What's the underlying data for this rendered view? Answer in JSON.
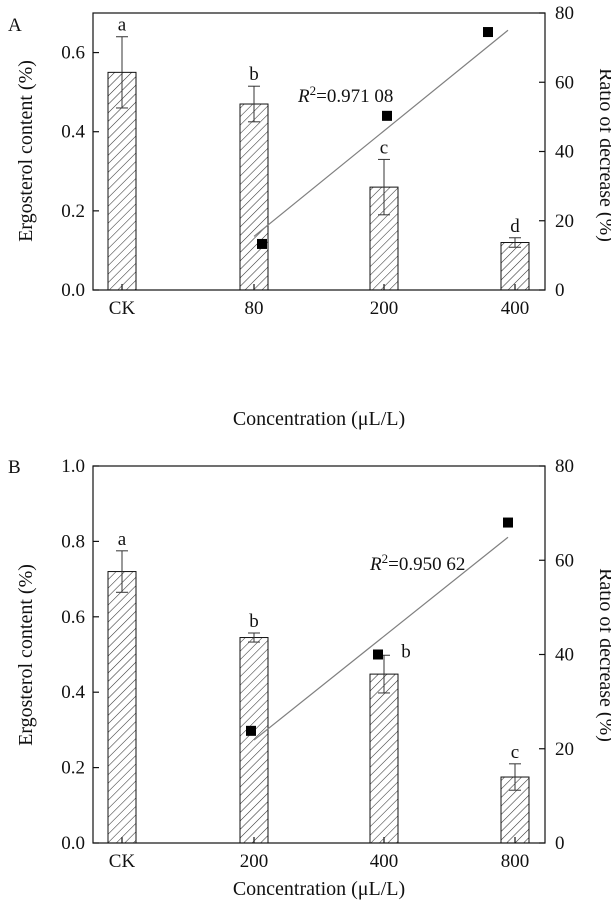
{
  "chart_data": [
    {
      "panel": "A",
      "type": "bar",
      "categories": [
        "CK",
        "80",
        "200",
        "400"
      ],
      "xlabel": "Concentration (μL/L)",
      "ylabel": "Ergosterol content (%)",
      "ylabel_right": "Ratio of decrease (%)",
      "ylim": [
        0,
        0.7
      ],
      "yticks": [
        "0.0",
        "0.2",
        "0.4",
        "0.6"
      ],
      "ylim_right": [
        0,
        80
      ],
      "yticks_right": [
        "0",
        "20",
        "40",
        "60",
        "80"
      ],
      "series": [
        {
          "values": [
            0.55,
            0.47,
            0.26,
            0.12
          ],
          "errors": [
            0.09,
            0.045,
            0.07,
            0.012
          ],
          "letters": [
            "a",
            "b",
            "c",
            "d"
          ]
        },
        {
          "type": "scatter",
          "x": [
            "80",
            "200",
            "400"
          ],
          "values": [
            13.3,
            50.3,
            74.5
          ],
          "trendline": true
        }
      ],
      "annotation": {
        "r2_label": "R",
        "r2_sup": "2",
        "r2_value": "=0.971 08"
      }
    },
    {
      "panel": "B",
      "type": "bar",
      "categories": [
        "CK",
        "200",
        "400",
        "800"
      ],
      "xlabel": "Concentration (μL/L)",
      "ylabel": "Ergosterol content (%)",
      "ylabel_right": "Ratio of decrease (%)",
      "ylim": [
        0,
        1.0
      ],
      "yticks": [
        "0.0",
        "0.2",
        "0.4",
        "0.6",
        "0.8",
        "1.0"
      ],
      "ylim_right": [
        0,
        80
      ],
      "yticks_right": [
        "0",
        "20",
        "40",
        "60",
        "80"
      ],
      "series": [
        {
          "values": [
            0.72,
            0.545,
            0.448,
            0.175
          ],
          "errors": [
            0.055,
            0.012,
            0.05,
            0.035
          ],
          "letters": [
            "a",
            "b",
            "b",
            "c"
          ]
        },
        {
          "type": "scatter",
          "x": [
            "200",
            "400",
            "800"
          ],
          "values": [
            23.8,
            40.0,
            68.0
          ],
          "trendline": true
        }
      ],
      "annotation": {
        "r2_label": "R",
        "r2_sup": "2",
        "r2_value": "=0.950 62"
      }
    }
  ],
  "colors": {
    "axis": "#111111",
    "bar_fill": "#ffffff",
    "hatch": "#333333",
    "trend": "#808080",
    "marker": "#000000"
  }
}
